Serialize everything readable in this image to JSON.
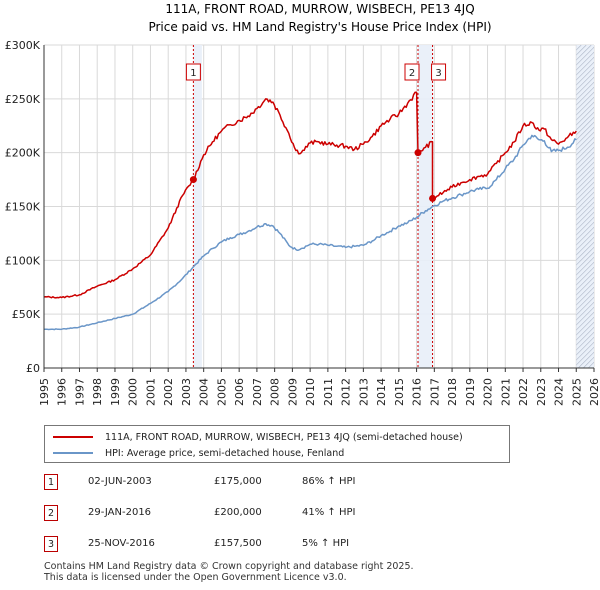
{
  "chart_data": {
    "type": "line",
    "title": "111A, FRONT ROAD, MURROW, WISBECH, PE13 4JQ",
    "subtitle": "Price paid vs. HM Land Registry's House Price Index (HPI)",
    "xlim": [
      1995,
      2026
    ],
    "ylim": [
      0,
      300000
    ],
    "x_ticks": [
      "1995",
      "1996",
      "1997",
      "1998",
      "1999",
      "2000",
      "2001",
      "2002",
      "2003",
      "2004",
      "2005",
      "2006",
      "2007",
      "2008",
      "2009",
      "2010",
      "2011",
      "2012",
      "2013",
      "2014",
      "2015",
      "2016",
      "2017",
      "2018",
      "2019",
      "2020",
      "2021",
      "2022",
      "2023",
      "2024",
      "2025",
      "2026"
    ],
    "y_ticks": [
      {
        "value": 0,
        "label": "£0"
      },
      {
        "value": 50000,
        "label": "£50K"
      },
      {
        "value": 100000,
        "label": "£100K"
      },
      {
        "value": 150000,
        "label": "£150K"
      },
      {
        "value": 200000,
        "label": "£200K"
      },
      {
        "value": 250000,
        "label": "£250K"
      },
      {
        "value": 300000,
        "label": "£300K"
      }
    ],
    "grid": true,
    "shaded_ranges": [
      [
        2003.42,
        2003.9
      ],
      [
        2016.08,
        2016.9
      ],
      [
        2025.0,
        2026.0
      ]
    ],
    "hatched_range": [
      2025.0,
      2026.0
    ],
    "series": [
      {
        "name": "111A, FRONT ROAD, MURROW, WISBECH, PE13 4JQ (semi-detached house)",
        "color": "#cc0000",
        "points": [
          [
            1995.0,
            66000
          ],
          [
            1996.0,
            65500
          ],
          [
            1997.0,
            68000
          ],
          [
            1998.0,
            76000
          ],
          [
            1999.0,
            82000
          ],
          [
            2000.0,
            92000
          ],
          [
            2001.0,
            105000
          ],
          [
            2002.0,
            130000
          ],
          [
            2002.8,
            160000
          ],
          [
            2003.42,
            175000
          ],
          [
            2004.0,
            198000
          ],
          [
            2004.5,
            210000
          ],
          [
            2005.0,
            220000
          ],
          [
            2005.5,
            226000
          ],
          [
            2006.0,
            230000
          ],
          [
            2006.5,
            234000
          ],
          [
            2007.0,
            241000
          ],
          [
            2007.5,
            250000
          ],
          [
            2007.9,
            247000
          ],
          [
            2008.3,
            235000
          ],
          [
            2008.8,
            218000
          ],
          [
            2009.2,
            202000
          ],
          [
            2009.5,
            200000
          ],
          [
            2010.0,
            209000
          ],
          [
            2010.5,
            210000
          ],
          [
            2011.0,
            208000
          ],
          [
            2011.5,
            207000
          ],
          [
            2012.0,
            206000
          ],
          [
            2012.5,
            203000
          ],
          [
            2013.0,
            208000
          ],
          [
            2013.5,
            215000
          ],
          [
            2014.0,
            225000
          ],
          [
            2014.5,
            231000
          ],
          [
            2015.0,
            236000
          ],
          [
            2015.5,
            246000
          ],
          [
            2016.0,
            256000
          ],
          [
            2016.08,
            200000
          ],
          [
            2016.5,
            205000
          ],
          [
            2016.9,
            210000
          ],
          [
            2016.9,
            157500
          ],
          [
            2017.5,
            163000
          ],
          [
            2018.0,
            168000
          ],
          [
            2018.5,
            172000
          ],
          [
            2019.0,
            175000
          ],
          [
            2019.5,
            178000
          ],
          [
            2020.0,
            180000
          ],
          [
            2020.5,
            190000
          ],
          [
            2021.0,
            200000
          ],
          [
            2021.5,
            210000
          ],
          [
            2022.0,
            225000
          ],
          [
            2022.5,
            228000
          ],
          [
            2022.9,
            221000
          ],
          [
            2023.2,
            222000
          ],
          [
            2023.6,
            212000
          ],
          [
            2024.0,
            208000
          ],
          [
            2024.5,
            214000
          ],
          [
            2025.0,
            220000
          ]
        ]
      },
      {
        "name": "HPI: Average price, semi-detached house, Fenland",
        "color": "#6a96c8",
        "points": [
          [
            1995.0,
            36000
          ],
          [
            1996.0,
            36000
          ],
          [
            1997.0,
            38000
          ],
          [
            1998.0,
            42000
          ],
          [
            1999.0,
            46000
          ],
          [
            2000.0,
            50000
          ],
          [
            2001.0,
            60000
          ],
          [
            2002.0,
            71000
          ],
          [
            2002.8,
            83000
          ],
          [
            2003.42,
            94000
          ],
          [
            2004.0,
            104000
          ],
          [
            2004.5,
            111000
          ],
          [
            2005.0,
            117000
          ],
          [
            2005.5,
            121000
          ],
          [
            2006.0,
            124000
          ],
          [
            2006.5,
            127000
          ],
          [
            2007.0,
            131000
          ],
          [
            2007.5,
            134000
          ],
          [
            2007.9,
            132000
          ],
          [
            2008.3,
            125000
          ],
          [
            2008.8,
            114000
          ],
          [
            2009.2,
            110000
          ],
          [
            2009.5,
            111000
          ],
          [
            2010.0,
            115000
          ],
          [
            2010.5,
            115000
          ],
          [
            2011.0,
            114000
          ],
          [
            2011.5,
            113000
          ],
          [
            2012.0,
            112000
          ],
          [
            2012.5,
            113000
          ],
          [
            2013.0,
            114000
          ],
          [
            2013.5,
            118000
          ],
          [
            2014.0,
            123000
          ],
          [
            2014.5,
            127000
          ],
          [
            2015.0,
            132000
          ],
          [
            2015.5,
            135000
          ],
          [
            2016.0,
            140000
          ],
          [
            2016.5,
            146000
          ],
          [
            2016.9,
            150000
          ],
          [
            2017.5,
            155000
          ],
          [
            2018.0,
            158000
          ],
          [
            2018.5,
            161000
          ],
          [
            2019.0,
            164000
          ],
          [
            2019.5,
            166000
          ],
          [
            2020.0,
            167000
          ],
          [
            2020.5,
            175000
          ],
          [
            2021.0,
            185000
          ],
          [
            2021.5,
            194000
          ],
          [
            2022.0,
            207000
          ],
          [
            2022.5,
            216000
          ],
          [
            2022.9,
            212000
          ],
          [
            2023.2,
            211000
          ],
          [
            2023.6,
            201000
          ],
          [
            2024.0,
            202000
          ],
          [
            2024.5,
            205000
          ],
          [
            2025.0,
            212000
          ]
        ]
      }
    ],
    "sales": [
      {
        "id": "1",
        "x": 2003.42,
        "price": 175000
      },
      {
        "id": "2",
        "x": 2016.08,
        "price": 200000
      },
      {
        "id": "3",
        "x": 2016.9,
        "price": 157500
      }
    ]
  },
  "legend": {
    "property_label": "111A, FRONT ROAD, MURROW, WISBECH, PE13 4JQ (semi-detached house)",
    "hpi_label": "HPI: Average price, semi-detached house, Fenland"
  },
  "transactions": [
    {
      "id": "1",
      "date": "02-JUN-2003",
      "price": "£175,000",
      "hpi": "86% ↑ HPI"
    },
    {
      "id": "2",
      "date": "29-JAN-2016",
      "price": "£200,000",
      "hpi": "41% ↑ HPI"
    },
    {
      "id": "3",
      "date": "25-NOV-2016",
      "price": "£157,500",
      "hpi": "5% ↑ HPI"
    }
  ],
  "footer": "Contains HM Land Registry data © Crown copyright and database right 2025.\nThis data is licensed under the Open Government Licence v3.0.",
  "colors": {
    "property": "#cc0000",
    "hpi": "#6a96c8",
    "grid": "#d9d9d9",
    "shade": "#e8eef8"
  }
}
